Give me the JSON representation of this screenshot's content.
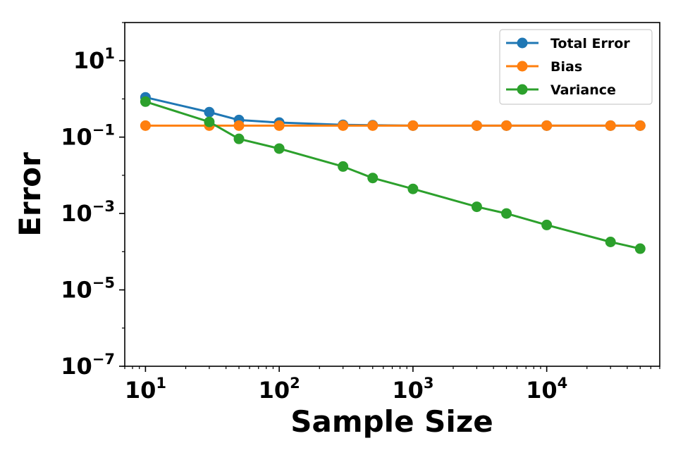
{
  "chart_data": {
    "type": "line",
    "title": "",
    "xlabel": "Sample Size",
    "ylabel": "Error",
    "xscale": "log",
    "yscale": "log",
    "xlim": [
      7,
      70000
    ],
    "ylim": [
      1e-07,
      100
    ],
    "grid": false,
    "legend_position": "top-right",
    "x": [
      10,
      30,
      50,
      100,
      300,
      500,
      1000,
      3000,
      5000,
      10000,
      30000,
      50000
    ],
    "x_ticks": [
      {
        "value": 10,
        "base": "10",
        "exp": "1"
      },
      {
        "value": 100,
        "base": "10",
        "exp": "2"
      },
      {
        "value": 1000,
        "base": "10",
        "exp": "3"
      },
      {
        "value": 10000,
        "base": "10",
        "exp": "4"
      }
    ],
    "y_ticks": [
      {
        "value": 10,
        "base": "10",
        "exp": "1"
      },
      {
        "value": 0.1,
        "base": "10",
        "exp": "−1"
      },
      {
        "value": 0.001,
        "base": "10",
        "exp": "−3"
      },
      {
        "value": 1e-05,
        "base": "10",
        "exp": "−5"
      },
      {
        "value": 1e-07,
        "base": "10",
        "exp": "−7"
      }
    ],
    "series": [
      {
        "name": "Total Error",
        "color": "#1f77b4",
        "values": [
          1.1,
          0.45,
          0.28,
          0.24,
          0.21,
          0.205,
          0.2,
          0.2,
          0.2,
          0.2,
          0.2,
          0.2
        ]
      },
      {
        "name": "Bias",
        "color": "#ff7f0e",
        "values": [
          0.2,
          0.2,
          0.2,
          0.2,
          0.2,
          0.2,
          0.2,
          0.2,
          0.2,
          0.2,
          0.2,
          0.2
        ]
      },
      {
        "name": "Variance",
        "color": "#2ca02c",
        "values": [
          0.85,
          0.25,
          0.09,
          0.05,
          0.017,
          0.0085,
          0.0044,
          0.0015,
          0.001,
          0.0005,
          0.00018,
          0.00012
        ]
      }
    ]
  }
}
